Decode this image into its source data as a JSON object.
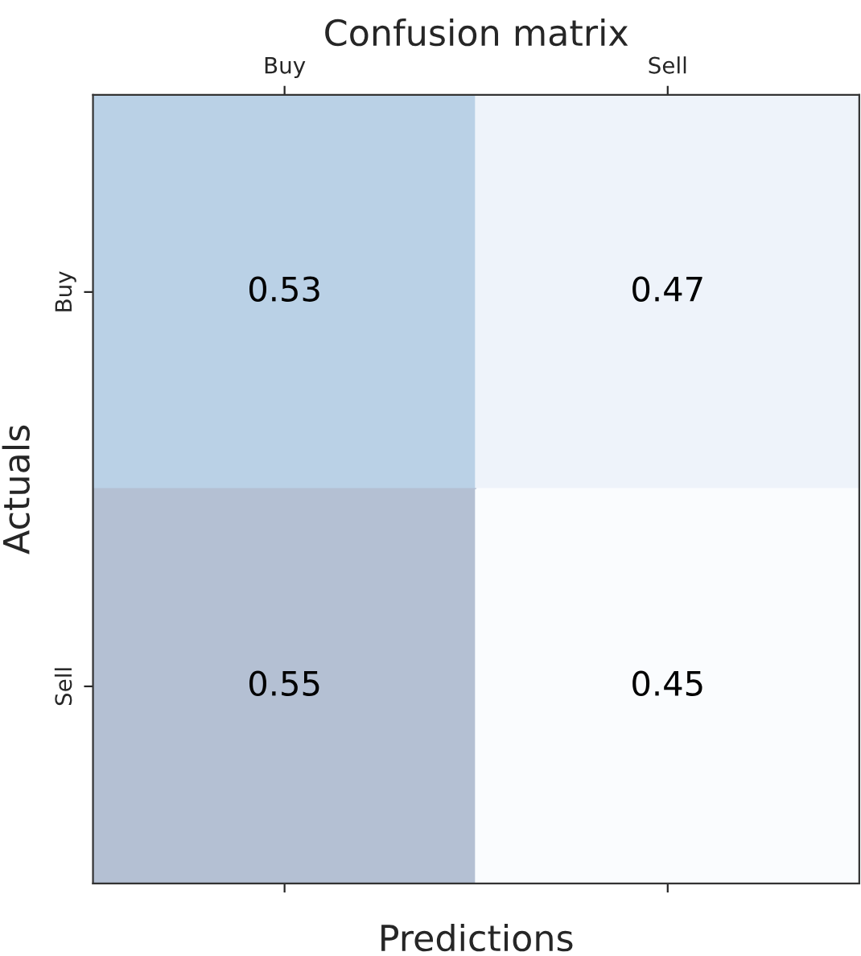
{
  "chart_data": {
    "type": "heatmap",
    "title": "Confusion matrix",
    "xlabel": "Predictions",
    "ylabel": "Actuals",
    "categories": [
      "Buy",
      "Sell"
    ],
    "y_categories": [
      "Buy",
      "Sell"
    ],
    "cells": [
      [
        0.53,
        0.47
      ],
      [
        0.55,
        0.45
      ]
    ],
    "colors": [
      "#bad1e6",
      "#eef3fa",
      "#b4c0d3",
      "#fafcfe"
    ],
    "data_labels": true
  }
}
